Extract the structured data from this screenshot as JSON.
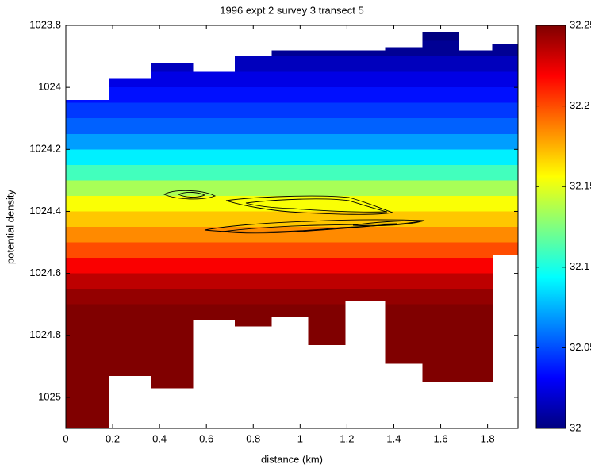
{
  "chart_data": {
    "type": "heatmap",
    "title": "1996 expt 2 survey 3 transect 5",
    "xlabel": "distance (km)",
    "ylabel": "potential density",
    "xlim": [
      0,
      1.93
    ],
    "xticks": [
      0,
      0.2,
      0.4,
      0.6,
      0.8,
      1,
      1.2,
      1.4,
      1.6,
      1.8
    ],
    "ylim": [
      1023.8,
      1025.1
    ],
    "yticks": [
      1023.8,
      1024,
      1024.2,
      1024.4,
      1024.6,
      1024.8,
      1025
    ],
    "y_inverted": true,
    "x_edges": [
      0,
      0.183,
      0.363,
      0.542,
      0.722,
      0.878,
      1.034,
      1.193,
      1.363,
      1.522,
      1.678,
      1.82,
      1.93
    ],
    "tops": [
      1024.04,
      1023.97,
      1023.92,
      1023.95,
      1023.9,
      1023.88,
      1023.88,
      1023.88,
      1023.87,
      1023.82,
      1023.88,
      1023.86
    ],
    "bottoms": [
      1025.1,
      1024.93,
      1024.97,
      1024.75,
      1024.77,
      1024.74,
      1024.83,
      1024.69,
      1024.89,
      1024.95,
      1024.95,
      1024.54
    ],
    "levels": [
      1023.8,
      1023.85,
      1023.9,
      1023.95,
      1024,
      1024.05,
      1024.1,
      1024.15,
      1024.2,
      1024.25,
      1024.3,
      1024.35,
      1024.4,
      1024.45,
      1024.5,
      1024.55,
      1024.6,
      1024.65,
      1024.7,
      1024.75,
      1024.8,
      1024.85,
      1024.9,
      1024.95,
      1025,
      1025.05,
      1025.1
    ],
    "values": [
      32.0,
      32.005,
      32.015,
      32.025,
      32.035,
      32.045,
      32.055,
      32.07,
      32.09,
      32.11,
      32.135,
      32.155,
      32.17,
      32.185,
      32.2,
      32.22,
      32.235,
      32.245,
      32.25,
      32.25,
      32.25,
      32.25,
      32.25,
      32.25,
      32.25,
      32.25
    ],
    "colormap": "jet",
    "clim": [
      32,
      32.25
    ],
    "cticks": [
      32,
      32.05,
      32.1,
      32.15,
      32.2,
      32.25
    ]
  }
}
